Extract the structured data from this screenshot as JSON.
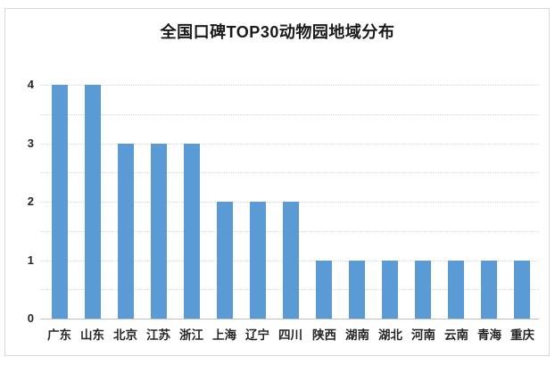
{
  "title": "全国口碑TOP30动物园地域分布",
  "chart_data": {
    "type": "bar",
    "title": "全国口碑TOP30动物园地域分布",
    "categories": [
      "广东",
      "山东",
      "北京",
      "江苏",
      "浙江",
      "上海",
      "辽宁",
      "四川",
      "陕西",
      "湖南",
      "湖北",
      "河南",
      "云南",
      "青海",
      "重庆"
    ],
    "values": [
      4,
      4,
      3,
      3,
      3,
      2,
      2,
      2,
      1,
      1,
      1,
      1,
      1,
      1,
      1
    ],
    "xlabel": "",
    "ylabel": "",
    "ylim": [
      0,
      4
    ],
    "yticks": [
      0,
      1,
      2,
      3,
      4
    ],
    "minor_grid_step": 0.5,
    "grid": "horizontal-dotted",
    "legend": "none"
  },
  "colors": {
    "bar": "#5B9BD5",
    "grid": "#d6d6d6",
    "axis_line": "#bfbfbf",
    "text": "#262626",
    "frame_border": "#d9d9d9",
    "background": "#ffffff"
  }
}
